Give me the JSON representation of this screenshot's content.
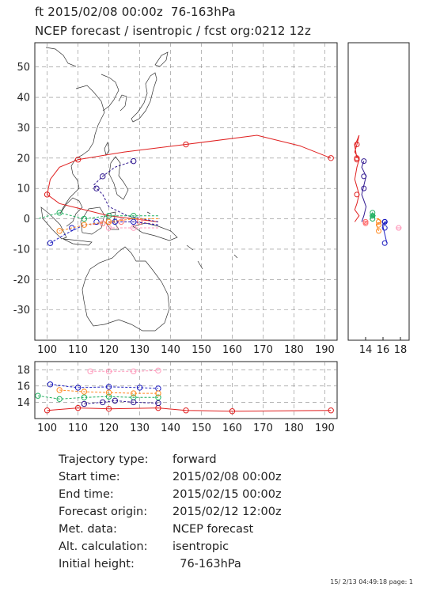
{
  "header": {
    "line1": "ft 2015/02/08 00:00z  76-163hPa",
    "line2": "NCEP forecast / isentropic / fcst org:0212 12z"
  },
  "info": [
    {
      "label": "Trajectory type:",
      "value": "forward"
    },
    {
      "label": "Start time:",
      "value": "2015/02/08 00:00z"
    },
    {
      "label": "End time:",
      "value": "2015/02/15 00:00z"
    },
    {
      "label": "Forecast origin:",
      "value": "2015/02/12 12:00z"
    },
    {
      "label": "Met. data:",
      "value": "NCEP forecast"
    },
    {
      "label": "Alt. calculation:",
      "value": "isentropic"
    },
    {
      "label": "Initial height:",
      "value": "  76-163hPa"
    }
  ],
  "footer": "15/ 2/13 04:49:18 page: 1",
  "chart_data": [
    {
      "type": "scatter",
      "panel": "map",
      "title": "",
      "xlabel": "",
      "ylabel": "",
      "xlim": [
        96,
        194
      ],
      "ylim": [
        -40,
        58
      ],
      "xticks": [
        100,
        110,
        120,
        130,
        140,
        150,
        160,
        170,
        180,
        190
      ],
      "yticks": [
        -30,
        -20,
        -10,
        0,
        10,
        20,
        30,
        40,
        50
      ],
      "grid": true,
      "series": [
        {
          "color": "#e02020",
          "points": [
            [
              136,
              -1
            ],
            [
              128,
              0
            ],
            [
              120,
              1
            ],
            [
              112,
              3
            ],
            [
              104,
              5
            ],
            [
              100,
              8
            ],
            [
              101,
              13
            ],
            [
              104,
              17
            ],
            [
              110,
              19.5
            ],
            [
              125,
              22
            ],
            [
              145,
              24.5
            ],
            [
              168,
              27.5
            ],
            [
              182,
              24
            ],
            [
              192,
              20
            ]
          ],
          "marks": [
            [
              100,
              8
            ],
            [
              110,
              19.5
            ],
            [
              145,
              24.5
            ],
            [
              192,
              20
            ]
          ]
        },
        {
          "color": "#ff7777",
          "points": [
            [
              136,
              -2
            ],
            [
              130,
              -1
            ],
            [
              124,
              -1
            ],
            [
              118,
              -1.5
            ],
            [
              114,
              -2
            ]
          ],
          "marks": [
            [
              118,
              -1.5
            ],
            [
              124,
              -1
            ],
            [
              130,
              -1
            ]
          ]
        },
        {
          "color": "#2020c0",
          "points": [
            [
              136,
              -2
            ],
            [
              128,
              -1
            ],
            [
              120,
              -1
            ],
            [
              112,
              -2
            ],
            [
              106,
              -5
            ],
            [
              101,
              -8
            ]
          ],
          "marks": [
            [
              101,
              -8
            ],
            [
              108,
              -3
            ],
            [
              116,
              -1
            ],
            [
              122,
              -1
            ],
            [
              128,
              -1
            ]
          ]
        },
        {
          "color": "#301890",
          "points": [
            [
              136,
              -1
            ],
            [
              126,
              1
            ],
            [
              120,
              4
            ],
            [
              118,
              8
            ],
            [
              115,
              11
            ],
            [
              118,
              14
            ],
            [
              122,
              17
            ],
            [
              128,
              19
            ]
          ],
          "marks": [
            [
              116,
              10
            ],
            [
              118,
              14
            ],
            [
              128,
              19
            ]
          ]
        },
        {
          "color": "#20b060",
          "points": [
            [
              136,
              1
            ],
            [
              128,
              1
            ],
            [
              120,
              1
            ],
            [
              112,
              0
            ],
            [
              104,
              2
            ],
            [
              97,
              0
            ]
          ],
          "marks": [
            [
              104,
              2
            ],
            [
              112,
              0
            ],
            [
              120,
              1
            ],
            [
              128,
              1
            ]
          ]
        },
        {
          "color": "#ff8820",
          "points": [
            [
              136,
              0
            ],
            [
              128,
              0
            ],
            [
              120,
              -1
            ],
            [
              112,
              -2
            ],
            [
              104,
              -4
            ]
          ],
          "marks": [
            [
              104,
              -4
            ],
            [
              112,
              -2
            ],
            [
              120,
              -1
            ]
          ]
        },
        {
          "color": "#ff99bb",
          "points": [
            [
              136,
              -3
            ],
            [
              128,
              -3
            ],
            [
              120,
              -3
            ]
          ],
          "marks": [
            [
              120,
              -3
            ],
            [
              128,
              -3
            ]
          ]
        }
      ]
    },
    {
      "type": "line",
      "panel": "side",
      "xlim": [
        12,
        19
      ],
      "ylim": [
        -40,
        58
      ],
      "xticks": [
        14,
        16,
        18
      ]
    },
    {
      "type": "line",
      "panel": "bottom",
      "xlim": [
        96,
        194
      ],
      "ylim": [
        12,
        19
      ],
      "xticks": [
        100,
        110,
        120,
        130,
        140,
        150,
        160,
        170,
        180,
        190
      ],
      "yticks": [
        14,
        16,
        18
      ],
      "series": [
        {
          "color": "#e02020",
          "points": [
            [
              100,
              13
            ],
            [
              110,
              13.3
            ],
            [
              120,
              13.2
            ],
            [
              136,
              13.3
            ],
            [
              145,
              13.0
            ],
            [
              160,
              12.9
            ],
            [
              192,
              13.0
            ]
          ]
        },
        {
          "color": "#2020c0",
          "points": [
            [
              101,
              16.2
            ],
            [
              110,
              15.8
            ],
            [
              120,
              15.9
            ],
            [
              130,
              15.8
            ],
            [
              136,
              15.7
            ]
          ]
        },
        {
          "color": "#20b060",
          "points": [
            [
              97,
              14.8
            ],
            [
              104,
              14.4
            ],
            [
              112,
              14.6
            ],
            [
              120,
              14.7
            ],
            [
              128,
              14.6
            ],
            [
              136,
              14.6
            ]
          ]
        },
        {
          "color": "#ff8820",
          "points": [
            [
              104,
              15.5
            ],
            [
              112,
              15.3
            ],
            [
              120,
              15.2
            ],
            [
              128,
              15.1
            ],
            [
              136,
              15.1
            ]
          ]
        },
        {
          "color": "#ff99bb",
          "points": [
            [
              114,
              17.8
            ],
            [
              120,
              17.8
            ],
            [
              128,
              17.8
            ],
            [
              136,
              17.9
            ]
          ]
        },
        {
          "color": "#301890",
          "points": [
            [
              112,
              13.8
            ],
            [
              118,
              14
            ],
            [
              122,
              14.2
            ],
            [
              128,
              14.0
            ],
            [
              136,
              13.9
            ]
          ]
        }
      ]
    }
  ]
}
